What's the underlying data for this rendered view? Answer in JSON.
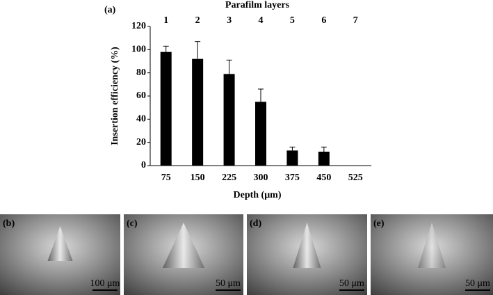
{
  "chart_data": {
    "type": "bar",
    "panel_label": "(a)",
    "top_axis_label": "Parafilm layers",
    "top_categories": [
      "1",
      "2",
      "3",
      "4",
      "5",
      "6",
      "7"
    ],
    "x_label": "Depth (μm)",
    "y_label": "Insertion efficiency (%)",
    "categories": [
      "75",
      "150",
      "225",
      "300",
      "375",
      "450",
      "525"
    ],
    "values": [
      98,
      92,
      79,
      55,
      13,
      12,
      0
    ],
    "errors": [
      5,
      15,
      12,
      11,
      3,
      4,
      0
    ],
    "color": "#000000",
    "ylim": [
      0,
      120
    ],
    "yticks": [
      0,
      20,
      40,
      60,
      80,
      100,
      120
    ]
  },
  "images": [
    {
      "label": "(b)",
      "scale": "100 μm"
    },
    {
      "label": "(c)",
      "scale": "50 μm"
    },
    {
      "label": "(d)",
      "scale": "50 μm"
    },
    {
      "label": "(e)",
      "scale": "50 μm"
    }
  ]
}
